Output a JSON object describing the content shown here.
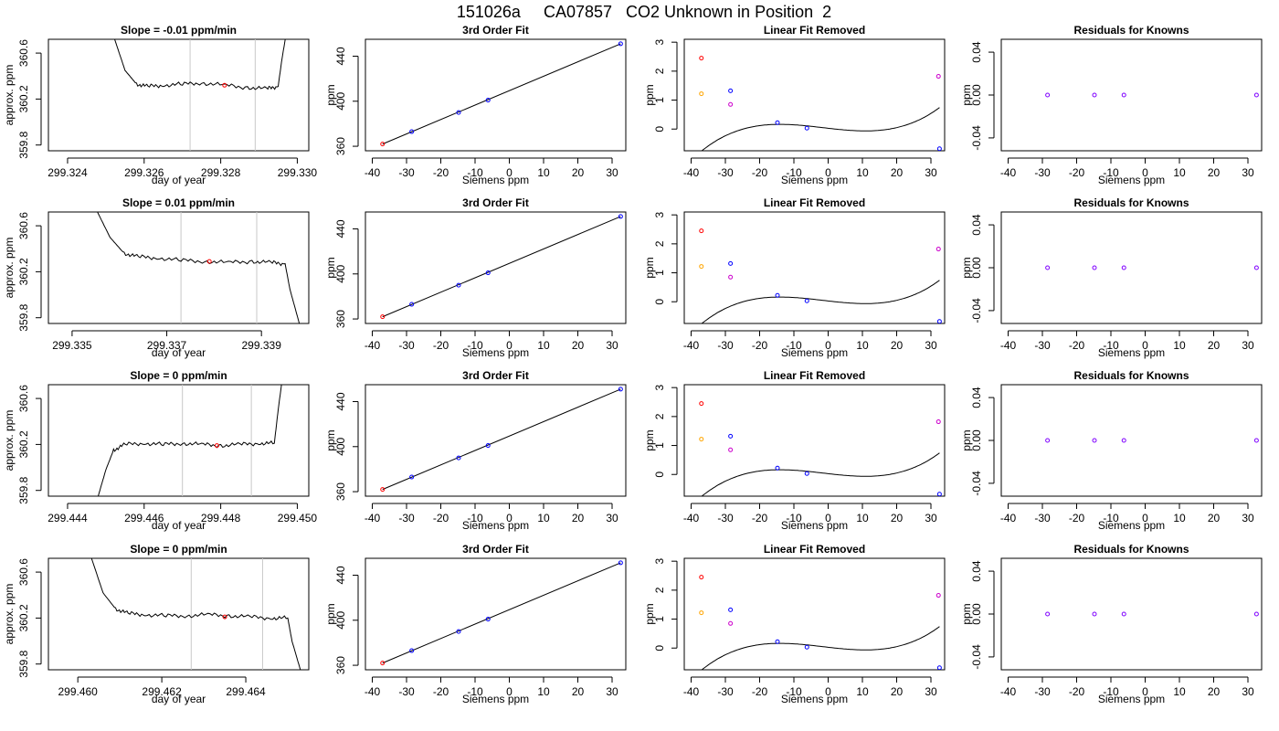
{
  "figure": {
    "title": "151026a     CA07857   CO2 Unknown in Position  2"
  },
  "colors": {
    "axis": "#000000",
    "trace": "#000000",
    "guide": "#c8c8c8",
    "red": "#ff0000",
    "blue": "#0000ff",
    "orange": "#ffa500",
    "magenta": "#cc00cc",
    "purple": "#7f00ff"
  },
  "chart_data": [
    {
      "type": "line",
      "row": 0,
      "col": 0,
      "title": "Slope =  -0.01  ppm/min",
      "xlabel": "day of year",
      "ylabel": "approx. ppm",
      "xlim": [
        299.3235,
        299.3303
      ],
      "ylim": [
        359.75,
        360.72
      ],
      "xticks": [
        299.324,
        299.326,
        299.328,
        299.33
      ],
      "xtick_labels": [
        "299.324",
        "299.326",
        "299.328",
        "299.330"
      ],
      "yticks": [
        359.8,
        360.2,
        360.6
      ],
      "ytick_labels": [
        "359.8",
        "360.2",
        "360.6"
      ],
      "guide_lines_x": [
        299.3272,
        299.3289
      ],
      "trace": {
        "x": [
          299.3252,
          299.3255,
          299.3258,
          299.3261,
          299.3265,
          299.327,
          299.3275,
          299.3281,
          299.3287,
          299.3292,
          299.3295,
          299.3296,
          299.3297
        ],
        "y": [
          360.75,
          360.45,
          360.33,
          360.31,
          360.32,
          360.33,
          360.34,
          360.32,
          360.3,
          360.29,
          360.31,
          360.55,
          360.75
        ]
      },
      "marker": {
        "x": 299.3281,
        "y": 360.32,
        "color": "red"
      }
    },
    {
      "type": "scatter",
      "row": 0,
      "col": 1,
      "title": "3rd Order Fit",
      "xlabel": "Siemens ppm",
      "ylabel": "ppm",
      "xlim": [
        -42,
        34
      ],
      "ylim": [
        356,
        455
      ],
      "xticks": [
        -40,
        -30,
        -20,
        -10,
        0,
        10,
        20,
        30
      ],
      "yticks": [
        360,
        400,
        440
      ],
      "fit_line": {
        "x": [
          -37,
          32.5
        ],
        "y": [
          362,
          451
        ]
      },
      "points": [
        {
          "x": -37,
          "y": 362,
          "color": "red"
        },
        {
          "x": -28.5,
          "y": 373,
          "color": "blue"
        },
        {
          "x": -14.8,
          "y": 390,
          "color": "blue"
        },
        {
          "x": -6.2,
          "y": 401,
          "color": "blue"
        },
        {
          "x": 32.5,
          "y": 451,
          "color": "blue"
        }
      ]
    },
    {
      "type": "scatter",
      "row": 0,
      "col": 2,
      "title": "Linear Fit Removed",
      "xlabel": "Siemens ppm",
      "ylabel": "ppm",
      "xlim": [
        -42,
        34
      ],
      "ylim": [
        -0.75,
        3.1
      ],
      "xticks": [
        -40,
        -30,
        -20,
        -10,
        0,
        10,
        20,
        30
      ],
      "yticks": [
        0,
        1,
        2,
        3
      ],
      "curve_coeffs": [
        0.0278,
        -0.0134,
        0.00014,
        2.92e-05
      ],
      "curve_range": [
        -38.5,
        32.5
      ],
      "points": [
        {
          "x": -37,
          "y": 2.45,
          "color": "red"
        },
        {
          "x": -28.5,
          "y": 1.32,
          "color": "blue"
        },
        {
          "x": -14.8,
          "y": 0.22,
          "color": "blue"
        },
        {
          "x": -6.2,
          "y": 0.03,
          "color": "blue"
        },
        {
          "x": 32.5,
          "y": -0.68,
          "color": "blue"
        },
        {
          "x": -37,
          "y": 1.22,
          "color": "orange"
        },
        {
          "x": -28.5,
          "y": 0.85,
          "color": "magenta"
        },
        {
          "x": 32.2,
          "y": 1.82,
          "color": "magenta"
        }
      ]
    },
    {
      "type": "scatter",
      "row": 0,
      "col": 3,
      "title": "Residuals for Knowns",
      "xlabel": "Siemens ppm",
      "ylabel": "ppm",
      "xlim": [
        -42,
        34
      ],
      "ylim": [
        -0.052,
        0.052
      ],
      "xticks": [
        -40,
        -30,
        -20,
        -10,
        0,
        10,
        20,
        30
      ],
      "yticks": [
        -0.04,
        0,
        0.04
      ],
      "ytick_labels": [
        "-0.04",
        "0.00",
        "0.04"
      ],
      "points": [
        {
          "x": -28.5,
          "y": 0,
          "color": "purple"
        },
        {
          "x": -14.8,
          "y": 0,
          "color": "purple"
        },
        {
          "x": -6.2,
          "y": 0,
          "color": "purple"
        },
        {
          "x": 32.5,
          "y": 0,
          "color": "purple"
        }
      ]
    },
    {
      "type": "line",
      "row": 1,
      "col": 0,
      "title": "Slope =  0.01  ppm/min",
      "xlabel": "day of year",
      "ylabel": "approx. ppm",
      "xlim": [
        299.3345,
        299.34
      ],
      "ylim": [
        359.75,
        360.72
      ],
      "xticks": [
        299.335,
        299.337,
        299.339
      ],
      "xtick_labels": [
        "299.335",
        "299.337",
        "299.339"
      ],
      "yticks": [
        359.8,
        360.2,
        360.6
      ],
      "ytick_labels": [
        "359.8",
        "360.2",
        "360.6"
      ],
      "guide_lines_x": [
        299.3373,
        299.3389
      ],
      "trace": {
        "x": [
          299.3355,
          299.3358,
          299.3361,
          299.3364,
          299.3368,
          299.3373,
          299.3378,
          299.3383,
          299.3388,
          299.3392,
          299.3395,
          299.3396,
          299.3398
        ],
        "y": [
          360.75,
          360.5,
          360.36,
          360.33,
          360.32,
          360.3,
          360.29,
          360.28,
          360.29,
          360.28,
          360.27,
          360.05,
          359.75
        ]
      },
      "marker": {
        "x": 299.3379,
        "y": 360.29,
        "color": "red"
      }
    },
    {
      "type": "scatter",
      "row": 1,
      "col": 1,
      "title": "3rd Order Fit",
      "xlabel": "Siemens ppm",
      "ylabel": "ppm",
      "xlim": [
        -42,
        34
      ],
      "ylim": [
        356,
        455
      ],
      "xticks": [
        -40,
        -30,
        -20,
        -10,
        0,
        10,
        20,
        30
      ],
      "yticks": [
        360,
        400,
        440
      ],
      "fit_line": {
        "x": [
          -37,
          32.5
        ],
        "y": [
          362,
          451
        ]
      },
      "points": [
        {
          "x": -37,
          "y": 362,
          "color": "red"
        },
        {
          "x": -28.5,
          "y": 373,
          "color": "blue"
        },
        {
          "x": -14.8,
          "y": 390,
          "color": "blue"
        },
        {
          "x": -6.2,
          "y": 401,
          "color": "blue"
        },
        {
          "x": 32.5,
          "y": 451,
          "color": "blue"
        }
      ]
    },
    {
      "type": "scatter",
      "row": 1,
      "col": 2,
      "title": "Linear Fit Removed",
      "xlabel": "Siemens ppm",
      "ylabel": "ppm",
      "xlim": [
        -42,
        34
      ],
      "ylim": [
        -0.75,
        3.1
      ],
      "xticks": [
        -40,
        -30,
        -20,
        -10,
        0,
        10,
        20,
        30
      ],
      "yticks": [
        0,
        1,
        2,
        3
      ],
      "curve_coeffs": [
        0.0278,
        -0.0134,
        0.00014,
        2.92e-05
      ],
      "curve_range": [
        -38.5,
        32.5
      ],
      "points": [
        {
          "x": -37,
          "y": 2.45,
          "color": "red"
        },
        {
          "x": -28.5,
          "y": 1.32,
          "color": "blue"
        },
        {
          "x": -14.8,
          "y": 0.22,
          "color": "blue"
        },
        {
          "x": -6.2,
          "y": 0.03,
          "color": "blue"
        },
        {
          "x": 32.5,
          "y": -0.68,
          "color": "blue"
        },
        {
          "x": -37,
          "y": 1.22,
          "color": "orange"
        },
        {
          "x": -28.5,
          "y": 0.85,
          "color": "magenta"
        },
        {
          "x": 32.2,
          "y": 1.82,
          "color": "magenta"
        }
      ]
    },
    {
      "type": "scatter",
      "row": 1,
      "col": 3,
      "title": "Residuals for Knowns",
      "xlabel": "Siemens ppm",
      "ylabel": "ppm",
      "xlim": [
        -42,
        34
      ],
      "ylim": [
        -0.052,
        0.052
      ],
      "xticks": [
        -40,
        -30,
        -20,
        -10,
        0,
        10,
        20,
        30
      ],
      "yticks": [
        -0.04,
        0,
        0.04
      ],
      "ytick_labels": [
        "-0.04",
        "0.00",
        "0.04"
      ],
      "points": [
        {
          "x": -28.5,
          "y": 0,
          "color": "purple"
        },
        {
          "x": -14.8,
          "y": 0,
          "color": "purple"
        },
        {
          "x": -6.2,
          "y": 0,
          "color": "purple"
        },
        {
          "x": 32.5,
          "y": 0,
          "color": "purple"
        }
      ]
    },
    {
      "type": "line",
      "row": 2,
      "col": 0,
      "title": "Slope =  0  ppm/min",
      "xlabel": "day of year",
      "ylabel": "approx. ppm",
      "xlim": [
        299.4435,
        299.4503
      ],
      "ylim": [
        359.75,
        360.72
      ],
      "xticks": [
        299.444,
        299.446,
        299.448,
        299.45
      ],
      "xtick_labels": [
        "299.444",
        "299.446",
        "299.448",
        "299.450"
      ],
      "yticks": [
        359.8,
        360.2,
        360.6
      ],
      "ytick_labels": [
        "359.8",
        "360.2",
        "360.6"
      ],
      "guide_lines_x": [
        299.447,
        299.4488
      ],
      "trace": {
        "x": [
          299.4448,
          299.445,
          299.4452,
          299.4455,
          299.446,
          299.4465,
          299.447,
          299.4475,
          299.448,
          299.4485,
          299.449,
          299.4494,
          299.4495,
          299.4496
        ],
        "y": [
          359.75,
          359.98,
          360.15,
          360.2,
          360.21,
          360.2,
          360.21,
          360.2,
          360.19,
          360.2,
          360.21,
          360.21,
          360.5,
          360.75
        ]
      },
      "marker": {
        "x": 299.4479,
        "y": 360.19,
        "color": "red"
      }
    },
    {
      "type": "scatter",
      "row": 2,
      "col": 1,
      "title": "3rd Order Fit",
      "xlabel": "Siemens ppm",
      "ylabel": "ppm",
      "xlim": [
        -42,
        34
      ],
      "ylim": [
        356,
        455
      ],
      "xticks": [
        -40,
        -30,
        -20,
        -10,
        0,
        10,
        20,
        30
      ],
      "yticks": [
        360,
        400,
        440
      ],
      "fit_line": {
        "x": [
          -37,
          32.5
        ],
        "y": [
          362,
          451
        ]
      },
      "points": [
        {
          "x": -37,
          "y": 362,
          "color": "red"
        },
        {
          "x": -28.5,
          "y": 373,
          "color": "blue"
        },
        {
          "x": -14.8,
          "y": 390,
          "color": "blue"
        },
        {
          "x": -6.2,
          "y": 401,
          "color": "blue"
        },
        {
          "x": 32.5,
          "y": 451,
          "color": "blue"
        }
      ]
    },
    {
      "type": "scatter",
      "row": 2,
      "col": 2,
      "title": "Linear Fit Removed",
      "xlabel": "Siemens ppm",
      "ylabel": "ppm",
      "xlim": [
        -42,
        34
      ],
      "ylim": [
        -0.75,
        3.1
      ],
      "xticks": [
        -40,
        -30,
        -20,
        -10,
        0,
        10,
        20,
        30
      ],
      "yticks": [
        0,
        1,
        2,
        3
      ],
      "curve_coeffs": [
        0.0278,
        -0.0134,
        0.00014,
        2.92e-05
      ],
      "curve_range": [
        -38.5,
        32.5
      ],
      "points": [
        {
          "x": -37,
          "y": 2.45,
          "color": "red"
        },
        {
          "x": -28.5,
          "y": 1.32,
          "color": "blue"
        },
        {
          "x": -14.8,
          "y": 0.22,
          "color": "blue"
        },
        {
          "x": -6.2,
          "y": 0.03,
          "color": "blue"
        },
        {
          "x": 32.5,
          "y": -0.68,
          "color": "blue"
        },
        {
          "x": -37,
          "y": 1.22,
          "color": "orange"
        },
        {
          "x": -28.5,
          "y": 0.85,
          "color": "magenta"
        },
        {
          "x": 32.2,
          "y": 1.82,
          "color": "magenta"
        }
      ]
    },
    {
      "type": "scatter",
      "row": 2,
      "col": 3,
      "title": "Residuals for Knowns",
      "xlabel": "Siemens ppm",
      "ylabel": "ppm",
      "xlim": [
        -42,
        34
      ],
      "ylim": [
        -0.052,
        0.052
      ],
      "xticks": [
        -40,
        -30,
        -20,
        -10,
        0,
        10,
        20,
        30
      ],
      "yticks": [
        -0.04,
        0,
        0.04
      ],
      "ytick_labels": [
        "-0.04",
        "0.00",
        "0.04"
      ],
      "points": [
        {
          "x": -28.5,
          "y": 0,
          "color": "purple"
        },
        {
          "x": -14.8,
          "y": 0,
          "color": "purple"
        },
        {
          "x": -6.2,
          "y": 0,
          "color": "purple"
        },
        {
          "x": 32.5,
          "y": 0,
          "color": "purple"
        }
      ]
    },
    {
      "type": "line",
      "row": 3,
      "col": 0,
      "title": "Slope =  0  ppm/min",
      "xlabel": "day of year",
      "ylabel": "approx. ppm",
      "xlim": [
        299.4593,
        299.4655
      ],
      "ylim": [
        359.75,
        360.72
      ],
      "xticks": [
        299.46,
        299.462,
        299.464
      ],
      "xtick_labels": [
        "299.460",
        "299.462",
        "299.464"
      ],
      "yticks": [
        359.8,
        360.2,
        360.6
      ],
      "ytick_labels": [
        "359.8",
        "360.2",
        "360.6"
      ],
      "guide_lines_x": [
        299.4627,
        299.4644
      ],
      "trace": {
        "x": [
          299.4603,
          299.4606,
          299.4609,
          299.4612,
          299.4616,
          299.4621,
          299.4626,
          299.4631,
          299.4636,
          299.4641,
          299.4646,
          299.465,
          299.4651,
          299.4653
        ],
        "y": [
          360.75,
          360.42,
          360.28,
          360.24,
          360.23,
          360.22,
          360.22,
          360.23,
          360.22,
          360.21,
          360.2,
          360.2,
          360.0,
          359.75
        ]
      },
      "marker": {
        "x": 299.4635,
        "y": 360.21,
        "color": "red"
      }
    },
    {
      "type": "scatter",
      "row": 3,
      "col": 1,
      "title": "3rd Order Fit",
      "xlabel": "Siemens ppm",
      "ylabel": "ppm",
      "xlim": [
        -42,
        34
      ],
      "ylim": [
        356,
        455
      ],
      "xticks": [
        -40,
        -30,
        -20,
        -10,
        0,
        10,
        20,
        30
      ],
      "yticks": [
        360,
        400,
        440
      ],
      "fit_line": {
        "x": [
          -37,
          32.5
        ],
        "y": [
          362,
          451
        ]
      },
      "points": [
        {
          "x": -37,
          "y": 362,
          "color": "red"
        },
        {
          "x": -28.5,
          "y": 373,
          "color": "blue"
        },
        {
          "x": -14.8,
          "y": 390,
          "color": "blue"
        },
        {
          "x": -6.2,
          "y": 401,
          "color": "blue"
        },
        {
          "x": 32.5,
          "y": 451,
          "color": "blue"
        }
      ]
    },
    {
      "type": "scatter",
      "row": 3,
      "col": 2,
      "title": "Linear Fit Removed",
      "xlabel": "Siemens ppm",
      "ylabel": "ppm",
      "xlim": [
        -42,
        34
      ],
      "ylim": [
        -0.75,
        3.1
      ],
      "xticks": [
        -40,
        -30,
        -20,
        -10,
        0,
        10,
        20,
        30
      ],
      "yticks": [
        0,
        1,
        2,
        3
      ],
      "curve_coeffs": [
        0.0278,
        -0.0134,
        0.00014,
        2.92e-05
      ],
      "curve_range": [
        -38.5,
        32.5
      ],
      "points": [
        {
          "x": -37,
          "y": 2.45,
          "color": "red"
        },
        {
          "x": -28.5,
          "y": 1.32,
          "color": "blue"
        },
        {
          "x": -14.8,
          "y": 0.22,
          "color": "blue"
        },
        {
          "x": -6.2,
          "y": 0.03,
          "color": "blue"
        },
        {
          "x": 32.5,
          "y": -0.68,
          "color": "blue"
        },
        {
          "x": -37,
          "y": 1.22,
          "color": "orange"
        },
        {
          "x": -28.5,
          "y": 0.85,
          "color": "magenta"
        },
        {
          "x": 32.2,
          "y": 1.82,
          "color": "magenta"
        }
      ]
    },
    {
      "type": "scatter",
      "row": 3,
      "col": 3,
      "title": "Residuals for Knowns",
      "xlabel": "Siemens ppm",
      "ylabel": "ppm",
      "xlim": [
        -42,
        34
      ],
      "ylim": [
        -0.052,
        0.052
      ],
      "xticks": [
        -40,
        -30,
        -20,
        -10,
        0,
        10,
        20,
        30
      ],
      "yticks": [
        -0.04,
        0,
        0.04
      ],
      "ytick_labels": [
        "-0.04",
        "0.00",
        "0.04"
      ],
      "points": [
        {
          "x": -28.5,
          "y": 0,
          "color": "purple"
        },
        {
          "x": -14.8,
          "y": 0,
          "color": "purple"
        },
        {
          "x": -6.2,
          "y": 0,
          "color": "purple"
        },
        {
          "x": 32.5,
          "y": 0,
          "color": "purple"
        }
      ]
    }
  ]
}
